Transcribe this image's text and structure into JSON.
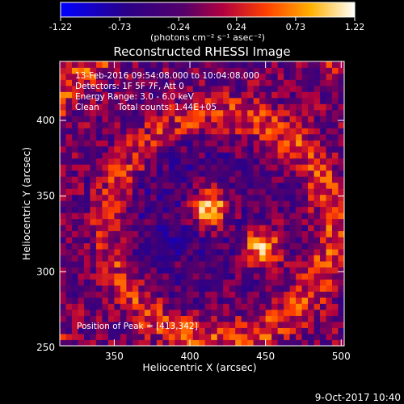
{
  "chart_data": {
    "type": "heatmap",
    "title": "Reconstructed RHESSI Image",
    "xlabel": "Heliocentric X (arcsec)",
    "ylabel": "Heliocentric Y (arcsec)",
    "xlim": [
      314,
      502
    ],
    "ylim": [
      251,
      439
    ],
    "xticks": [
      350,
      400,
      450,
      500
    ],
    "yticks": [
      250,
      300,
      350,
      400
    ],
    "grid": false,
    "colorbar": {
      "min": -1.22,
      "max": 1.22,
      "tick_labels": [
        "-1.22",
        "-0.73",
        "-0.24",
        "0.24",
        "0.73",
        "1.22"
      ],
      "unit_label": "(photons cm⁻² s⁻¹ asec⁻²)",
      "placement": "top"
    },
    "annotations": [
      "13-Feb-2016 09:54:08.000 to 10:04:08.000",
      "Detectors: 1F 5F 7F, Att 0",
      "Energy Range: 3.0 - 6.0 keV",
      "Clean",
      "Total counts: 1.44E+05"
    ],
    "peak_label": "Position of Peak = [413,342]",
    "sources": [
      {
        "x": 413,
        "y": 342,
        "value": 1.22
      },
      {
        "x": 447,
        "y": 316,
        "value": 1.05
      }
    ]
  },
  "footer": {
    "timestamp": "9-Oct-2017 10:40"
  }
}
